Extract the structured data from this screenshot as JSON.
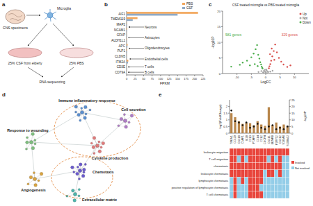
{
  "panel_labels": [
    "a",
    "b",
    "c",
    "d",
    "e"
  ],
  "diagram_a": {
    "nodes": [
      {
        "label": "CNS specimens"
      },
      {
        "label": "Microglia"
      },
      {
        "label": "25% CSF from elderly"
      },
      {
        "label": "25% PBS"
      },
      {
        "label": "RNA sequencing"
      }
    ]
  },
  "diagram_d": {
    "nodes": [
      {
        "label": "Immune inflammatory response"
      },
      {
        "label": "Response to wounding"
      },
      {
        "label": "Cell secretion"
      },
      {
        "label": "Cytokine production"
      },
      {
        "label": "Angiogenesis"
      },
      {
        "label": "Chemotaxis"
      },
      {
        "label": "Extracellular matrix"
      }
    ]
  },
  "chart_data": [
    {
      "type": "bar",
      "orientation": "horizontal",
      "categories": [
        "AIF1",
        "TMEM119",
        "MAP2",
        "NCAM1",
        "GFAP",
        "ALDH1L1",
        "APC",
        "PLP1",
        "CLDN5",
        "ITM2A",
        "CD3E",
        "CD79A"
      ],
      "series": [
        {
          "name": "PBS",
          "color": "#f2a65a",
          "values": [
            210,
            32,
            1,
            2,
            0.5,
            1,
            3,
            2,
            0.5,
            5,
            0.3,
            0.3
          ]
        },
        {
          "name": "CSF",
          "color": "#8fa9c4",
          "values": [
            150,
            18,
            1,
            1.5,
            0.5,
            0.8,
            2.5,
            1.5,
            0.4,
            4,
            0.3,
            0.3
          ]
        }
      ],
      "xlim": [
        0,
        225
      ],
      "xticks": [
        0,
        25,
        50,
        75,
        100,
        125,
        150,
        175,
        200,
        225
      ],
      "x_label": "FPKM",
      "legend": "upper right",
      "annotations": [
        {
          "text": "Neurons",
          "categories": [
            "MAP2",
            "NCAM1"
          ]
        },
        {
          "text": "Astrocytes",
          "categories": [
            "GFAP",
            "ALDH1L1"
          ]
        },
        {
          "text": "Oligodendrocytes",
          "categories": [
            "APC",
            "PLP1"
          ]
        },
        {
          "text": "Endothelial cells",
          "categories": [
            "CLDN5",
            "ITM2A"
          ]
        },
        {
          "text": "T cells",
          "categories": [
            "CD3E"
          ]
        },
        {
          "text": "B cells",
          "categories": [
            "CD79A"
          ]
        }
      ]
    },
    {
      "type": "scatter",
      "title": "CSF treated microglia vs PBS treated microglia",
      "x_label": "LogFC",
      "y_label": "-log10P",
      "xlim": [
        -15,
        15
      ],
      "xticks": [
        -10,
        -5,
        0,
        5,
        10
      ],
      "ylim": [
        0,
        20
      ],
      "yticks": [
        0,
        5,
        10,
        15,
        20
      ],
      "legend": "upper right",
      "series": [
        {
          "name": "Up",
          "color": "#d9534f",
          "marker": "circle",
          "x": [
            1.1,
            1.3,
            1.6,
            1.9,
            2.3,
            2.8,
            3.3,
            3.9,
            4.6,
            5.4,
            6.2,
            7.5,
            2.1,
            3.0,
            1.5,
            8.6
          ],
          "values": [
            1.7,
            2.3,
            3.0,
            4.1,
            5.5,
            7.2,
            9.3,
            6.8,
            5.0,
            3.8,
            2.9,
            2.1,
            8.0,
            4.4,
            6.2,
            2.6
          ]
        },
        {
          "name": "Not",
          "color": "#a8a8a8",
          "marker": "circle",
          "x": [
            -0.9,
            -0.6,
            -0.3,
            0,
            0.3,
            0.6,
            0.9,
            -0.7,
            0.5,
            -0.2,
            0.2,
            -1.5,
            1.6,
            -2.5,
            2.4
          ],
          "values": [
            0.4,
            0.9,
            1.2,
            0.3,
            1.0,
            0.7,
            0.5,
            0.2,
            0.1,
            0.6,
            1.3,
            0.8,
            0.6,
            0.5,
            0.9
          ]
        },
        {
          "name": "Down",
          "color": "#4cae4c",
          "marker": "circle",
          "x": [
            -12,
            -9,
            -8,
            -6.5,
            -5,
            -4.2,
            -3.5,
            -3,
            -2.6,
            -2.2,
            -1.9,
            -1.6,
            -1.4,
            -1.2,
            -1.1,
            -3.8,
            -2.8,
            -5.5
          ],
          "values": [
            2.2,
            2.8,
            3.5,
            4.1,
            5.2,
            6.4,
            7.8,
            9.1,
            6.0,
            4.8,
            3.6,
            2.9,
            2.2,
            1.8,
            1.6,
            3.0,
            2.4,
            2.6
          ]
        }
      ],
      "annotations": [
        {
          "text": "581 genes",
          "series": "Down"
        },
        {
          "text": "329 genes",
          "series": "Up"
        }
      ]
    },
    {
      "type": "bar",
      "y_label": "log2(FoldChange)",
      "y2_label": "-log10P",
      "categories": [
        "TREM1",
        "CCL20",
        "CXCL8",
        "C5AR1",
        "IL1B",
        "CCL3",
        "PTAFR",
        "CCL4",
        "CCL2",
        "CXCR4",
        "CXCL1",
        "EDNRB",
        "P2RY12",
        "CXCL2",
        "S100A8",
        "S100A12"
      ],
      "ylim": [
        0,
        2.5
      ],
      "yticks": [
        0,
        0.5,
        1,
        1.5,
        2
      ],
      "y2lim": [
        0,
        25
      ],
      "y2ticks": [
        0,
        5,
        10,
        15,
        20,
        25
      ],
      "series": [
        {
          "type": "bar",
          "color": "#b8864b",
          "values": [
            1.5,
            1.2,
            0.9,
            0.7,
            0.8,
            0.75,
            0.6,
            0.9,
            0.65,
            0.55,
            1.95,
            0.6,
            0.8,
            0.5,
            0.65,
            0.55
          ]
        },
        {
          "type": "scatter",
          "axis": "y2",
          "color": "#111111",
          "marker": "circle",
          "values": [
            17,
            9,
            8,
            6,
            8,
            4,
            5,
            7,
            4,
            3,
            5,
            6,
            3,
            4,
            3,
            5
          ]
        }
      ]
    },
    {
      "type": "heatmap",
      "categories": [
        "leukocyte migration",
        "T cell migration",
        "chemotaxis",
        "leukocyte chemotaxis",
        "lymphocyte chemotaxis",
        "positive regulation of lymphocyte chemotaxis",
        "T cell chemotaxis"
      ],
      "values": [
        [
          1,
          1,
          1,
          1,
          1,
          1,
          1,
          1,
          1,
          1,
          1,
          1,
          1,
          1,
          1,
          1
        ],
        [
          1,
          1,
          0,
          1,
          0,
          1,
          1,
          1,
          1,
          1,
          0,
          1,
          0,
          1,
          0,
          0
        ],
        [
          1,
          1,
          1,
          1,
          1,
          1,
          1,
          1,
          1,
          1,
          1,
          1,
          1,
          1,
          0,
          0
        ],
        [
          1,
          1,
          1,
          1,
          1,
          1,
          1,
          1,
          1,
          0,
          1,
          1,
          0,
          1,
          0,
          0
        ],
        [
          0,
          1,
          0,
          1,
          0,
          1,
          1,
          1,
          1,
          0,
          0,
          0,
          0,
          0,
          0,
          0
        ],
        [
          0,
          1,
          0,
          0,
          0,
          1,
          1,
          1,
          0,
          0,
          0,
          0,
          0,
          0,
          0,
          0
        ],
        [
          0,
          1,
          0,
          0,
          0,
          1,
          1,
          1,
          1,
          0,
          0,
          0,
          0,
          0,
          0,
          0
        ]
      ],
      "levels": [
        {
          "value": 1,
          "label": "Involved",
          "color": "#e8453c"
        },
        {
          "value": 0,
          "label": "Not involved",
          "color": "#93cde8"
        }
      ]
    }
  ]
}
